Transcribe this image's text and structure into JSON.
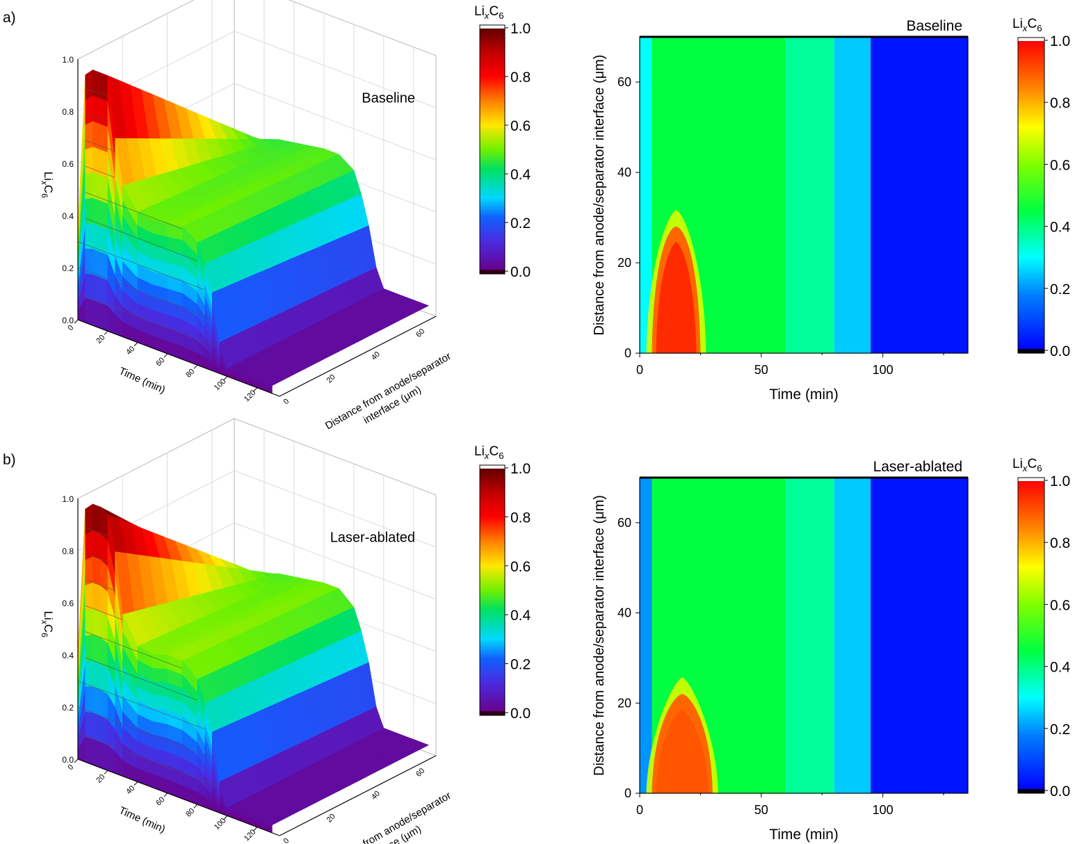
{
  "figure": {
    "panels": [
      {
        "label": "a)",
        "name": "Baseline",
        "colorbar_label": "LixC6",
        "colorbar_title_base": "Li",
        "colorbar_title_sub_x": "x",
        "colorbar_title_mid": "C",
        "colorbar_title_sub_6": "6"
      },
      {
        "label": "b)",
        "name": "Laser-ablated",
        "colorbar_label": "LixC6",
        "colorbar_title_base": "Li",
        "colorbar_title_sub_x": "x",
        "colorbar_title_mid": "C",
        "colorbar_title_sub_6": "6"
      }
    ]
  },
  "chart_data": [
    {
      "type": "surface3d",
      "panel": "a",
      "annotation": "Baseline",
      "xlabel": "Time (min)",
      "ylabel": "Distance from anode/separator interface (μm)",
      "zlabel": "LixC6",
      "xticks": [
        "0",
        "20",
        "40",
        "60",
        "80",
        "100",
        "120"
      ],
      "yticks": [
        "0",
        "20",
        "40",
        "60"
      ],
      "zticks": [
        "0.0",
        "0.2",
        "0.4",
        "0.6",
        "0.8",
        "1.0"
      ],
      "zlim": [
        0,
        1
      ],
      "time": [
        0,
        5,
        10,
        15,
        20,
        25,
        30,
        40,
        50,
        60,
        70,
        80,
        85,
        90,
        95,
        100,
        110,
        120,
        130
      ],
      "lixc6_at_separator": [
        0.35,
        0.95,
        0.98,
        0.98,
        0.98,
        0.75,
        0.58,
        0.5,
        0.49,
        0.5,
        0.51,
        0.47,
        0.4,
        0.3,
        0.12,
        0.03,
        0.03,
        0.03,
        0.03
      ],
      "lixc6_at_current_collector": [
        0.1,
        0.2,
        0.28,
        0.35,
        0.42,
        0.44,
        0.45,
        0.46,
        0.47,
        0.48,
        0.48,
        0.44,
        0.36,
        0.25,
        0.1,
        0.03,
        0.03,
        0.03,
        0.03
      ],
      "colorbar": {
        "label": "LixC6",
        "ticks": [
          "0.0",
          "0.2",
          "0.4",
          "0.6",
          "0.8",
          "1.0"
        ],
        "range": [
          0,
          1
        ]
      }
    },
    {
      "type": "heatmap",
      "panel": "a",
      "annotation": "Baseline",
      "xlabel": "Time (min)",
      "ylabel": "Distance from anode/separator interface (μm)",
      "xticks": [
        "0",
        "50",
        "100"
      ],
      "yticks": [
        "0",
        "20",
        "40",
        "60"
      ],
      "xlim": [
        0,
        135
      ],
      "ylim": [
        0,
        70
      ],
      "regions": [
        {
          "time": [
            0,
            5
          ],
          "distance": [
            0,
            70
          ],
          "lixc6": 0.3
        },
        {
          "time": [
            5,
            25
          ],
          "distance": [
            0,
            28
          ],
          "lixc6": 0.95
        },
        {
          "time": [
            5,
            60
          ],
          "distance": [
            0,
            70
          ],
          "lixc6": 0.45
        },
        {
          "time": [
            60,
            80
          ],
          "distance": [
            0,
            70
          ],
          "lixc6": 0.38
        },
        {
          "time": [
            80,
            95
          ],
          "distance": [
            0,
            70
          ],
          "lixc6": 0.25
        },
        {
          "time": [
            95,
            135
          ],
          "distance": [
            0,
            70
          ],
          "lixc6": 0.03
        }
      ],
      "colorbar": {
        "label": "LixC6",
        "ticks": [
          "0.0",
          "0.2",
          "0.4",
          "0.6",
          "0.8",
          "1.0"
        ],
        "range": [
          0,
          1
        ]
      }
    },
    {
      "type": "surface3d",
      "panel": "b",
      "annotation": "Laser-ablated",
      "xlabel": "Time (min)",
      "ylabel": "Distance from anode/separator interface (μm)",
      "zlabel": "LixC6",
      "xticks": [
        "0",
        "20",
        "40",
        "60",
        "80",
        "100",
        "120"
      ],
      "yticks": [
        "0",
        "20",
        "40",
        "60"
      ],
      "zticks": [
        "0.0",
        "0.2",
        "0.4",
        "0.6",
        "0.8",
        "1.0"
      ],
      "zlim": [
        0,
        1
      ],
      "time": [
        0,
        5,
        10,
        15,
        20,
        25,
        30,
        40,
        50,
        60,
        70,
        80,
        85,
        90,
        95,
        100,
        110,
        120,
        130
      ],
      "lixc6_at_separator": [
        0.4,
        0.97,
        1.0,
        1.0,
        0.98,
        0.85,
        0.62,
        0.52,
        0.51,
        0.53,
        0.53,
        0.48,
        0.4,
        0.3,
        0.12,
        0.03,
        0.03,
        0.03,
        0.03
      ],
      "lixc6_at_current_collector": [
        0.1,
        0.22,
        0.3,
        0.38,
        0.44,
        0.46,
        0.47,
        0.48,
        0.49,
        0.5,
        0.5,
        0.45,
        0.37,
        0.26,
        0.1,
        0.03,
        0.03,
        0.03,
        0.03
      ],
      "colorbar": {
        "label": "LixC6",
        "ticks": [
          "0.0",
          "0.2",
          "0.4",
          "0.6",
          "0.8",
          "1.0"
        ],
        "range": [
          0,
          1
        ]
      }
    },
    {
      "type": "heatmap",
      "panel": "b",
      "annotation": "Laser-ablated",
      "xlabel": "Time (min)",
      "ylabel": "Distance from anode/separator interface (μm)",
      "xticks": [
        "0",
        "50",
        "100"
      ],
      "yticks": [
        "0",
        "20",
        "40",
        "60"
      ],
      "xlim": [
        0,
        135
      ],
      "ylim": [
        0,
        70
      ],
      "regions": [
        {
          "time": [
            0,
            5
          ],
          "distance": [
            0,
            70
          ],
          "lixc6": 0.2
        },
        {
          "time": [
            5,
            30
          ],
          "distance": [
            0,
            22
          ],
          "lixc6": 0.9
        },
        {
          "time": [
            5,
            60
          ],
          "distance": [
            0,
            70
          ],
          "lixc6": 0.45
        },
        {
          "time": [
            60,
            80
          ],
          "distance": [
            0,
            70
          ],
          "lixc6": 0.38
        },
        {
          "time": [
            80,
            95
          ],
          "distance": [
            0,
            70
          ],
          "lixc6": 0.25
        },
        {
          "time": [
            95,
            135
          ],
          "distance": [
            0,
            70
          ],
          "lixc6": 0.03
        }
      ],
      "colorbar": {
        "label": "LixC6",
        "ticks": [
          "0.0",
          "0.2",
          "0.4",
          "0.6",
          "0.8",
          "1.0"
        ],
        "range": [
          0,
          1
        ]
      }
    }
  ]
}
